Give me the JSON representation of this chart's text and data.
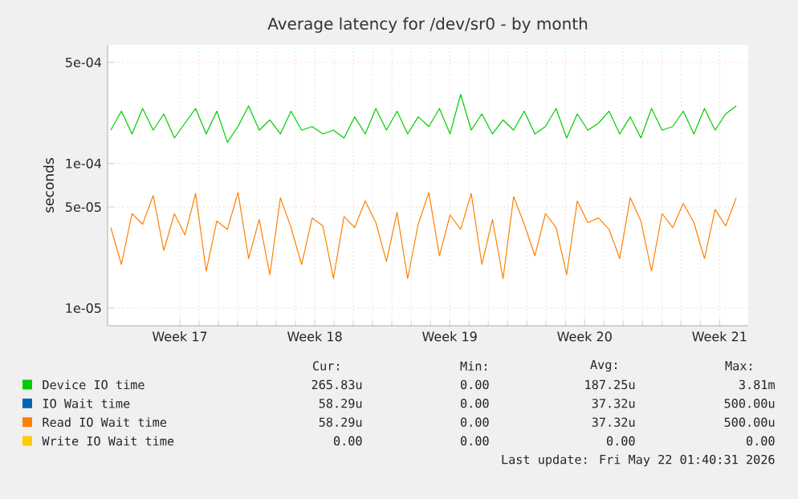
{
  "chart_data": {
    "type": "line",
    "title": "Average latency for /dev/sr0 - by month",
    "ylabel": "seconds",
    "x": [
      "2026-04-19T00:00",
      "2026-04-19T13:12",
      "2026-04-20T02:24",
      "2026-04-20T15:36",
      "2026-04-21T04:48",
      "2026-04-21T18:00",
      "2026-04-22T07:12",
      "2026-04-22T20:24",
      "2026-04-23T09:36",
      "2026-04-23T22:48",
      "2026-04-24T12:00",
      "2026-04-25T01:12",
      "2026-04-25T14:24",
      "2026-04-26T03:36",
      "2026-04-26T16:48",
      "2026-04-27T06:00",
      "2026-04-27T19:12",
      "2026-04-28T08:24",
      "2026-04-28T21:36",
      "2026-04-29T10:48",
      "2026-04-30T00:00",
      "2026-04-30T13:12",
      "2026-05-01T02:24",
      "2026-05-01T15:36",
      "2026-05-02T04:48",
      "2026-05-02T18:00",
      "2026-05-03T07:12",
      "2026-05-03T20:24",
      "2026-05-04T09:36",
      "2026-05-04T22:48",
      "2026-05-05T12:00",
      "2026-05-06T01:12",
      "2026-05-06T14:24",
      "2026-05-07T03:36",
      "2026-05-07T16:48",
      "2026-05-08T06:00",
      "2026-05-08T19:12",
      "2026-05-09T08:24",
      "2026-05-09T21:36",
      "2026-05-10T10:48",
      "2026-05-11T00:00",
      "2026-05-11T13:12",
      "2026-05-12T02:24",
      "2026-05-12T15:36",
      "2026-05-13T04:48",
      "2026-05-13T18:00",
      "2026-05-14T07:12",
      "2026-05-14T20:24",
      "2026-05-15T09:36",
      "2026-05-15T22:48",
      "2026-05-16T12:00",
      "2026-05-17T01:12",
      "2026-05-17T14:24",
      "2026-05-18T03:36",
      "2026-05-18T16:48",
      "2026-05-19T06:00",
      "2026-05-19T19:12",
      "2026-05-20T08:24",
      "2026-05-20T21:36",
      "2026-05-21T10:48"
    ],
    "series": [
      {
        "name": "Device IO time",
        "color": "#00cc00",
        "values": [
          0.00017,
          0.00023,
          0.00016,
          0.00024,
          0.00017,
          0.00022,
          0.00015,
          0.00019,
          0.00024,
          0.00016,
          0.00023,
          0.00014,
          0.00018,
          0.00025,
          0.00017,
          0.0002,
          0.00016,
          0.00023,
          0.00017,
          0.00018,
          0.00016,
          0.00017,
          0.00015,
          0.00021,
          0.00016,
          0.00024,
          0.00017,
          0.00023,
          0.00016,
          0.00021,
          0.00018,
          0.00024,
          0.00016,
          0.0003,
          0.00017,
          0.00022,
          0.00016,
          0.0002,
          0.00017,
          0.00023,
          0.00016,
          0.00018,
          0.00024,
          0.00015,
          0.00022,
          0.00017,
          0.00019,
          0.00023,
          0.00016,
          0.00021,
          0.00015,
          0.00024,
          0.00017,
          0.00018,
          0.00023,
          0.00016,
          0.00024,
          0.00017,
          0.00022,
          0.00025
        ]
      },
      {
        "name": "IO Wait time",
        "color": "#0066b3",
        "values": [
          null,
          null,
          null,
          null,
          null,
          null,
          null,
          null,
          null,
          null,
          null,
          null,
          null,
          null,
          null,
          null,
          null,
          null,
          null,
          null,
          null,
          null,
          null,
          null,
          null,
          null,
          null,
          null,
          null,
          null,
          null,
          null,
          null,
          null,
          null,
          null,
          null,
          null,
          null,
          null,
          null,
          null,
          null,
          null,
          null,
          null,
          null,
          null,
          null,
          null,
          null,
          null,
          null,
          null,
          null,
          null,
          null,
          null,
          null,
          null
        ]
      },
      {
        "name": "Read IO Wait time",
        "color": "#ff8000",
        "values": [
          3.6e-05,
          2e-05,
          4.5e-05,
          3.8e-05,
          6e-05,
          2.5e-05,
          4.5e-05,
          3.2e-05,
          6.2e-05,
          1.8e-05,
          4e-05,
          3.5e-05,
          6.3e-05,
          2.2e-05,
          4.1e-05,
          1.7e-05,
          5.8e-05,
          3.6e-05,
          2e-05,
          4.2e-05,
          3.7e-05,
          1.6e-05,
          4.3e-05,
          3.6e-05,
          5.5e-05,
          3.9e-05,
          2.1e-05,
          4.6e-05,
          1.6e-05,
          3.8e-05,
          6.3e-05,
          2.3e-05,
          4.4e-05,
          3.5e-05,
          6.2e-05,
          2e-05,
          4.1e-05,
          1.6e-05,
          5.9e-05,
          3.8e-05,
          2.3e-05,
          4.5e-05,
          3.6e-05,
          1.7e-05,
          5.5e-05,
          3.9e-05,
          4.2e-05,
          3.5e-05,
          2.2e-05,
          5.8e-05,
          4e-05,
          1.8e-05,
          4.5e-05,
          3.6e-05,
          5.3e-05,
          3.9e-05,
          2.2e-05,
          4.8e-05,
          3.7e-05,
          5.8e-05
        ]
      },
      {
        "name": "Write IO Wait time",
        "color": "#ffcc00",
        "values": [
          null,
          null,
          null,
          null,
          null,
          null,
          null,
          null,
          null,
          null,
          null,
          null,
          null,
          null,
          null,
          null,
          null,
          null,
          null,
          null,
          null,
          null,
          null,
          null,
          null,
          null,
          null,
          null,
          null,
          null,
          null,
          null,
          null,
          null,
          null,
          null,
          null,
          null,
          null,
          null,
          null,
          null,
          null,
          null,
          null,
          null,
          null,
          null,
          null,
          null,
          null,
          null,
          null,
          null,
          null,
          null,
          null,
          null,
          null,
          null
        ]
      }
    ],
    "log": "y",
    "xlim": [
      "2026-04-18T20:00",
      "2026-05-22T01:40"
    ],
    "xticks": [
      {
        "value": "2026-04-22T14:00",
        "label": "Week 17"
      },
      {
        "value": "2026-04-29T14:00",
        "label": "Week 18"
      },
      {
        "value": "2026-05-06T14:00",
        "label": "Week 19"
      },
      {
        "value": "2026-05-13T14:00",
        "label": "Week 20"
      },
      {
        "value": "2026-05-20T14:00",
        "label": "Week 21"
      }
    ],
    "ylim": [
      7.55e-06,
      0.00066
    ],
    "yticks": [
      {
        "value": 1e-05,
        "label": "1e-05"
      },
      {
        "value": 5e-05,
        "label": "5e-05"
      },
      {
        "value": 0.0001,
        "label": "1e-04"
      },
      {
        "value": 0.0005,
        "label": "5e-04"
      }
    ],
    "grid": true,
    "legend": "bottom",
    "line_style": "solid",
    "annotations": [
      "Cur:",
      "Min:",
      "Avg:",
      "Max:",
      "265.83u",
      "0.00",
      "187.25u",
      "3.81m",
      "58.29u",
      "0.00",
      "37.32u",
      "500.00u",
      "58.29u",
      "0.00",
      "37.32u",
      "500.00u",
      "0.00",
      "0.00",
      "0.00",
      "0.00",
      "Last update: Fri May 22 01:40:31 2026"
    ]
  }
}
